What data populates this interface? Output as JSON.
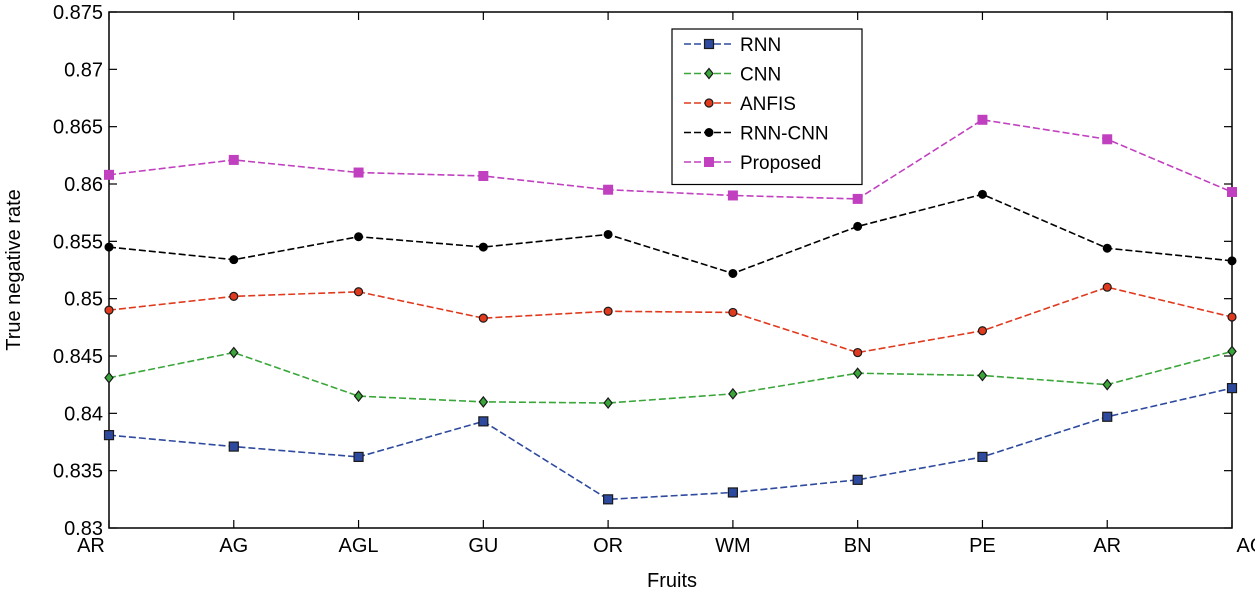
{
  "chart_data": {
    "type": "line",
    "title": "",
    "xlabel": "Fruits",
    "ylabel": "True negative rate",
    "categories": [
      "AR",
      "AG",
      "AGL",
      "GU",
      "OR",
      "WM",
      "BN",
      "PE",
      "AR",
      "AG"
    ],
    "ylim": [
      0.83,
      0.875
    ],
    "yticks": [
      "0.83",
      "0.835",
      "0.84",
      "0.845",
      "0.85",
      "0.855",
      "0.86",
      "0.865",
      "0.87",
      "0.875"
    ],
    "grid": false,
    "legend_position": "top-right",
    "series": [
      {
        "name": "RNN",
        "color": "#2e4a9e",
        "marker": "square",
        "values": [
          0.8381,
          0.8371,
          0.8362,
          0.8393,
          0.8325,
          0.8331,
          0.8342,
          0.8362,
          0.8397,
          0.8422
        ]
      },
      {
        "name": "CNN",
        "color": "#3aa63a",
        "marker": "diamond",
        "values": [
          0.8431,
          0.8453,
          0.8415,
          0.841,
          0.8409,
          0.8417,
          0.8435,
          0.8433,
          0.8425,
          0.8454
        ]
      },
      {
        "name": "ANFIS",
        "color": "#e03a1e",
        "marker": "circle",
        "values": [
          0.849,
          0.8502,
          0.8506,
          0.8483,
          0.8489,
          0.8488,
          0.8453,
          0.8472,
          0.851,
          0.8484
        ]
      },
      {
        "name": "RNN-CNN",
        "color": "#000000",
        "marker": "dot",
        "values": [
          0.8545,
          0.8534,
          0.8554,
          0.8545,
          0.8556,
          0.8522,
          0.8563,
          0.8591,
          0.8544,
          0.8533
        ]
      },
      {
        "name": "Proposed",
        "color": "#c040c0",
        "marker": "square-filled",
        "values": [
          0.8608,
          0.8621,
          0.861,
          0.8607,
          0.8595,
          0.859,
          0.8587,
          0.8656,
          0.8639,
          0.8593
        ]
      }
    ]
  }
}
